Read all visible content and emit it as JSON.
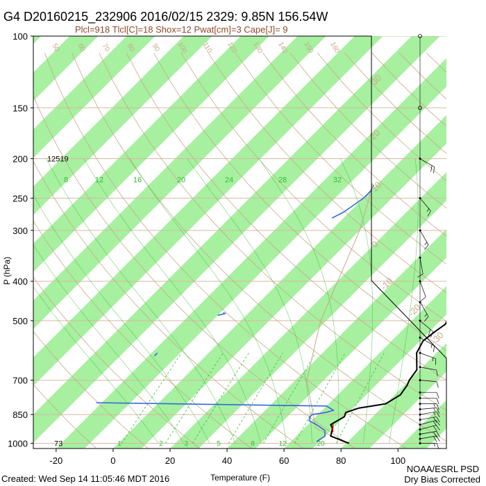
{
  "title": "G4 D20160215_232906 2016/02/15 2329:  9.85N 156.54W",
  "subtitle": "Plcl=918 Tlcl[C]=18 Shox=12 Pwat[cm]=3 Cape[J]= 9",
  "footer_left": "Created: Wed Sep 14 11:05:46 MDT 2016",
  "footer_right_1": "NOAA/ESRL PSD",
  "footer_right_2": "Dry Bias Corrected",
  "colors": {
    "band": "#a6f0a0",
    "temperature": "#000000",
    "dewpoint": "#3366dd",
    "isobar": "#d9b8a0",
    "dry_adiabat": "#c8a888",
    "moist_adiabat": "#33bb33",
    "mixing_ratio": "#33bb33",
    "parcel": "#c8a888",
    "lcl_marker": "#dd0000"
  },
  "chart_data": {
    "type": "line",
    "xlabel": "Temperature (F)",
    "ylabel": "P (hPa)",
    "xlim": [
      -28,
      117
    ],
    "ylim": [
      1030,
      100
    ],
    "log_y": true,
    "x_ticks": [
      "-20",
      "0",
      "20",
      "40",
      "60",
      "80",
      "100"
    ],
    "x_tick_values": [
      -20,
      0,
      20,
      40,
      60,
      80,
      100
    ],
    "y_ticks": [
      "100",
      "150",
      "200",
      "250",
      "300",
      "400",
      "500",
      "700",
      "850",
      "1000"
    ],
    "y_tick_values": [
      100,
      150,
      200,
      250,
      300,
      400,
      500,
      700,
      850,
      1000
    ],
    "annotations": {
      "height_top": "12519",
      "height_bottom": "73"
    },
    "mixing_ratio_labels": [
      "8",
      "12",
      "16",
      "20",
      "24",
      "28",
      "32"
    ],
    "mixing_ratio_small_labels": [
      "1",
      "2",
      "3",
      "5",
      "8",
      "12",
      "20"
    ],
    "skew_temp_labels": [
      "50",
      "60",
      "70",
      "80",
      "90",
      "100",
      "110",
      "120",
      "130",
      "140",
      "150",
      "160"
    ],
    "adiabat_labels": [
      "-30",
      "-20",
      "-10",
      "0",
      "10",
      "20",
      "30"
    ],
    "series": [
      {
        "name": "Temperature",
        "points": [
          [
            1000,
            81
          ],
          [
            960,
            72
          ],
          [
            920,
            70
          ],
          [
            900,
            68
          ],
          [
            880,
            69
          ],
          [
            860,
            70
          ],
          [
            840,
            69
          ],
          [
            820,
            72
          ],
          [
            800,
            80
          ],
          [
            760,
            82
          ],
          [
            720,
            81
          ],
          [
            700,
            80
          ],
          [
            660,
            79
          ],
          [
            600,
            73
          ],
          [
            560,
            71
          ],
          [
            530,
            72
          ],
          [
            510,
            73
          ],
          [
            480,
            71
          ],
          [
            450,
            69
          ],
          [
            420,
            67
          ],
          [
            400,
            65
          ],
          [
            380,
            63
          ],
          [
            350,
            60
          ],
          [
            320,
            57
          ],
          [
            290,
            53
          ],
          [
            270,
            51
          ],
          [
            250,
            49
          ],
          [
            230,
            47
          ],
          [
            210,
            45
          ],
          [
            200,
            44
          ]
        ]
      },
      {
        "name": "Dewpoint",
        "points": [
          [
            990,
            69
          ],
          [
            960,
            70
          ],
          [
            930,
            68
          ],
          [
            900,
            63
          ],
          [
            880,
            59
          ],
          [
            860,
            58
          ],
          [
            850,
            58
          ],
          [
            840,
            62
          ],
          [
            830,
            64
          ],
          [
            810,
            60
          ],
          [
            800,
            5
          ],
          [
            795,
            -22
          ]
        ]
      },
      {
        "name": "Dewpoint upper 1",
        "points": [
          [
            485,
            -10
          ],
          [
            480,
            -8
          ],
          [
            478,
            -9
          ]
        ]
      },
      {
        "name": "Dewpoint upper 2",
        "points": [
          [
            280,
            -4
          ],
          [
            270,
            -2
          ],
          [
            260,
            -1
          ],
          [
            250,
            0
          ],
          [
            240,
            0
          ],
          [
            232,
            -1
          ]
        ]
      },
      {
        "name": "Dewpoint upper 3",
        "points": [
          [
            610,
            -18
          ],
          [
            600,
            -18
          ]
        ]
      }
    ],
    "wind_barbs": {
      "pressures": [
        1000,
        975,
        950,
        925,
        900,
        875,
        850,
        825,
        800,
        775,
        750,
        700,
        650,
        600,
        550,
        500,
        450,
        400,
        350,
        300,
        250,
        200,
        150,
        100
      ],
      "direction_deg": [
        90,
        80,
        80,
        75,
        75,
        80,
        80,
        85,
        90,
        90,
        90,
        95,
        100,
        110,
        120,
        130,
        150,
        160,
        170,
        150,
        140,
        120,
        0,
        0
      ],
      "speed_kt": [
        15,
        20,
        20,
        22,
        22,
        20,
        18,
        18,
        15,
        12,
        10,
        10,
        12,
        15,
        18,
        22,
        15,
        12,
        10,
        15,
        18,
        20,
        0,
        0
      ]
    }
  }
}
